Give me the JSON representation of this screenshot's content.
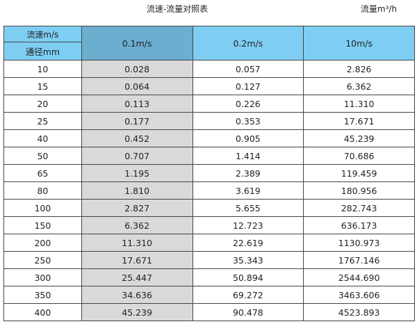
{
  "title": "流速-流量对照表",
  "unit": "流量m³/h",
  "header": {
    "velocity_label": "流速m/s",
    "diameter_label": "通径mm",
    "columns": [
      "0.1m/s",
      "0.2m/s",
      "10m/s"
    ]
  },
  "rows": [
    [
      "10",
      "0.028",
      "0.057",
      "2.826"
    ],
    [
      "15",
      "0.064",
      "0.127",
      "6.362"
    ],
    [
      "20",
      "0.113",
      "0.226",
      "11.310"
    ],
    [
      "25",
      "0.177",
      "0.353",
      "17.671"
    ],
    [
      "40",
      "0.452",
      "0.905",
      "45.239"
    ],
    [
      "50",
      "0.707",
      "1.414",
      "70.686"
    ],
    [
      "65",
      "1.195",
      "2.389",
      "119.459"
    ],
    [
      "80",
      "1.810",
      "3.619",
      "180.956"
    ],
    [
      "100",
      "2.827",
      "5.655",
      "282.743"
    ],
    [
      "150",
      "6.362",
      "12.723",
      "636.173"
    ],
    [
      "200",
      "11.310",
      "22.619",
      "1130.973"
    ],
    [
      "250",
      "17.671",
      "35.343",
      "1767.146"
    ],
    [
      "300",
      "25.447",
      "50.894",
      "2544.690"
    ],
    [
      "350",
      "34.636",
      "69.272",
      "3463.606"
    ],
    [
      "400",
      "45.239",
      "90.478",
      "4523.893"
    ]
  ],
  "colors": {
    "header": "#7ecef4",
    "highlight_header": "#6baed0",
    "highlight_column": "#d9d9d9"
  }
}
